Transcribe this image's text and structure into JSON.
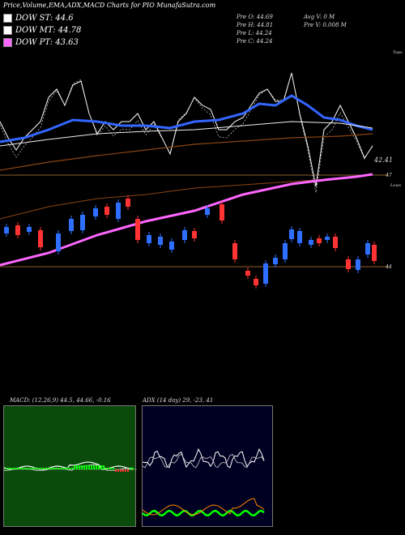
{
  "title": "Price,Volume,EMA,ADX,MACD Charts for PIO MunafaSutra.com",
  "legend": [
    {
      "label": "DOW ST: 44.6",
      "color": "#ffffff"
    },
    {
      "label": "DOW MT: 44.78",
      "color": "#ffffff"
    },
    {
      "label": "DOW PT: 43.63",
      "color": "#ff66ff"
    }
  ],
  "ohlc": {
    "open": "Pre O: 44.69",
    "high": "Pre H: 44.81",
    "low": "Pre L: 44.24",
    "close": "Pre C: 44.24",
    "avg_vol": "Avg V: 0 M",
    "pre_vol": "Pre V: 0.008 M"
  },
  "price_labels": {
    "right_top": "42.41",
    "right_47": "47",
    "right_44": "44",
    "tops": "Tops",
    "lows": "Lows"
  },
  "indicators": {
    "macd": {
      "title": "MACD: (12,26,9) 44.5, 44.66, -0.16"
    },
    "adx": {
      "title": "ADX (14 day) 29, -23, 41"
    }
  },
  "colors": {
    "up": "#2f6fff",
    "down": "#ff3333",
    "ema_blue": "#3366ff",
    "trend_pink": "#ff66ff",
    "ema_brown": "#8b4513",
    "macd_bg": "#0a4a0a",
    "adx_bg": "#000022",
    "adx_green": "#00ff00",
    "adx_orange": "#ff8800"
  },
  "chart_data": {
    "type": "candlestick",
    "candles": [
      {
        "o": 44.69,
        "h": 44.81,
        "l": 44.24,
        "c": 44.24
      }
    ]
  }
}
